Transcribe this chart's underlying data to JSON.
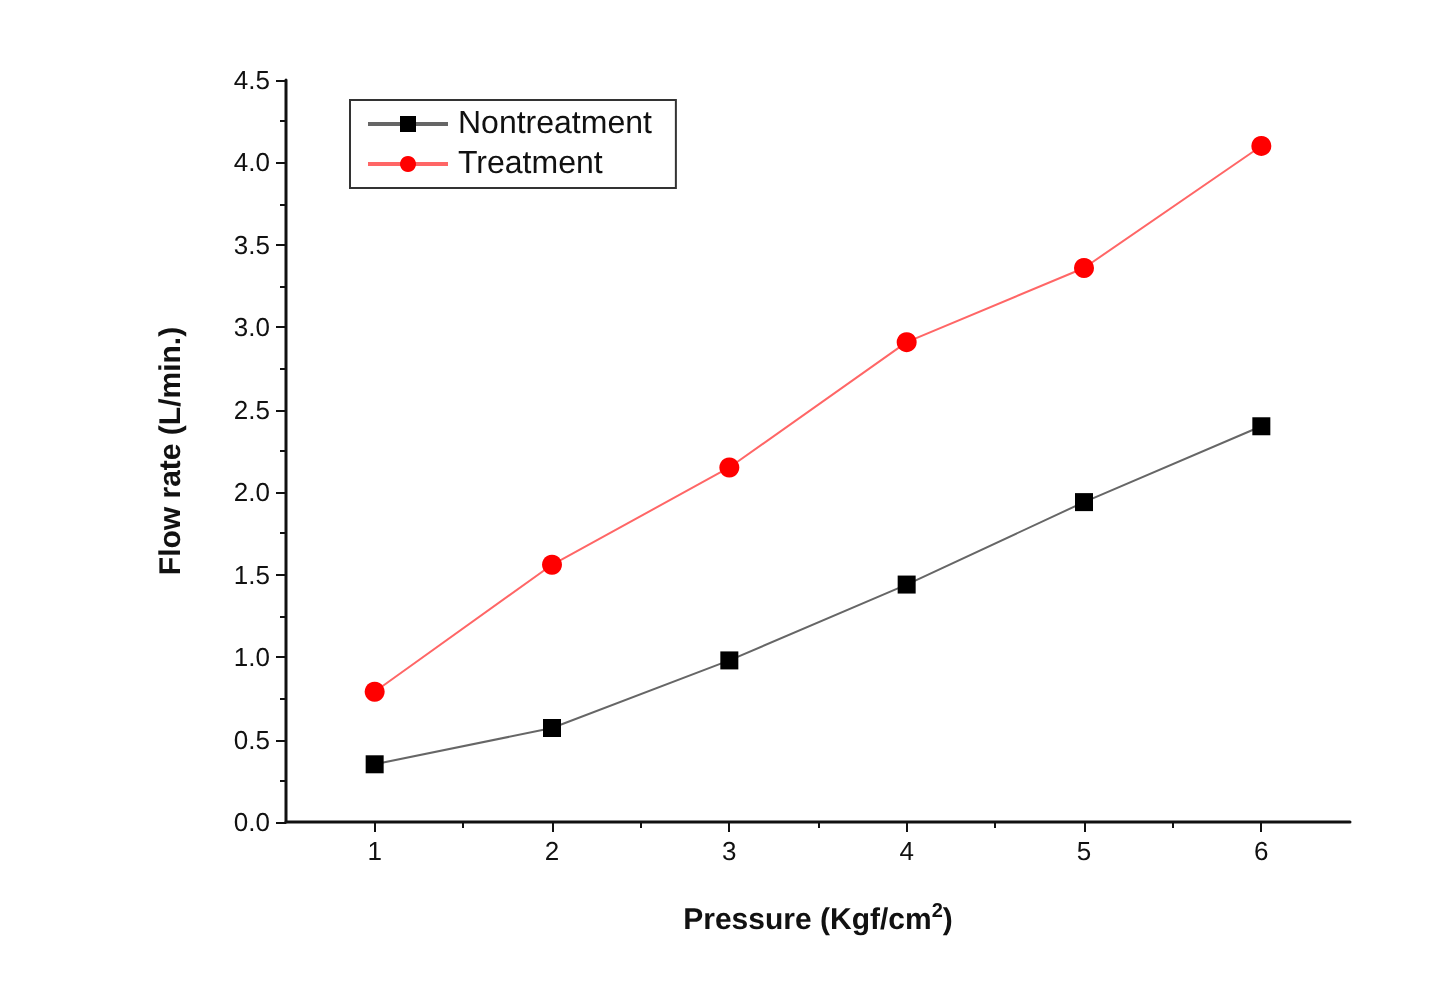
{
  "chart_data": {
    "type": "line",
    "xlabel": "Pressure (Kgf/cm$^{2}$)",
    "ylabel": "Flow rate (L/min.)",
    "x": [
      1,
      2,
      3,
      4,
      5,
      6
    ],
    "series": [
      {
        "name": "Nontreatment",
        "color": "#000000",
        "marker": "square",
        "values": [
          0.35,
          0.57,
          0.98,
          1.44,
          1.94,
          2.4
        ]
      },
      {
        "name": "Treatment",
        "color": "#ff0000",
        "marker": "circle",
        "values": [
          0.79,
          1.56,
          2.15,
          2.91,
          3.36,
          4.1
        ]
      }
    ],
    "xlim": [
      0.5,
      6.5
    ],
    "xticks": [
      1,
      2,
      3,
      4,
      5,
      6
    ],
    "ylim": [
      0,
      4.5
    ],
    "yticks": [
      {
        "value": 0,
        "label": "0.0"
      },
      0.5,
      {
        "value": 1,
        "label": "1.0"
      },
      1.5,
      {
        "value": 2,
        "label": "2.0"
      },
      2.5,
      {
        "value": 3,
        "label": "3.0"
      },
      3.5,
      {
        "value": 4,
        "label": "4.0"
      },
      4.5
    ],
    "grid": false,
    "legend": "top left",
    "line_style": "solid"
  }
}
